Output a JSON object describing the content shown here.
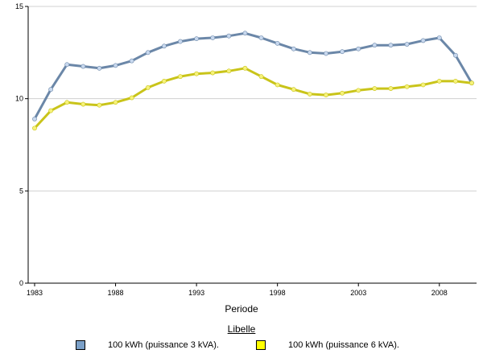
{
  "chart_data": {
    "type": "line",
    "xlabel": "Periode",
    "legend_title": "Libelle",
    "x": [
      1983,
      1984,
      1985,
      1986,
      1987,
      1988,
      1989,
      1990,
      1991,
      1992,
      1993,
      1994,
      1995,
      1996,
      1997,
      1998,
      1999,
      2000,
      2001,
      2002,
      2003,
      2004,
      2005,
      2006,
      2007,
      2008,
      2009,
      2010
    ],
    "x_ticks": [
      "1983",
      "1988",
      "1993",
      "1998",
      "2003",
      "2008"
    ],
    "y_ticks": [
      "0",
      "5",
      "10",
      "15"
    ],
    "ylim": [
      0,
      15
    ],
    "grid": "horizontal",
    "legend_position": "bottom",
    "series": [
      {
        "name": "100 kWh (puissance 3 kVA).",
        "color": "#6b87a8",
        "marker_color": "#c8d8ee",
        "swatch_color": "#7ba0c8",
        "values": [
          8.9,
          10.5,
          11.85,
          11.75,
          11.65,
          11.8,
          12.05,
          12.5,
          12.85,
          13.1,
          13.25,
          13.3,
          13.4,
          13.55,
          13.3,
          13.0,
          12.7,
          12.5,
          12.45,
          12.55,
          12.7,
          12.9,
          12.9,
          12.95,
          13.15,
          13.3,
          12.35,
          10.85
        ]
      },
      {
        "name": "100 kWh (puissance 6 kVA).",
        "color": "#c9c41a",
        "marker_color": "#f6f27a",
        "swatch_color": "#ffff00",
        "values": [
          8.4,
          9.35,
          9.8,
          9.7,
          9.65,
          9.8,
          10.05,
          10.6,
          10.95,
          11.2,
          11.35,
          11.4,
          11.5,
          11.65,
          11.2,
          10.75,
          10.5,
          10.25,
          10.2,
          10.3,
          10.45,
          10.55,
          10.55,
          10.65,
          10.75,
          10.95,
          10.95,
          10.85
        ]
      }
    ]
  }
}
